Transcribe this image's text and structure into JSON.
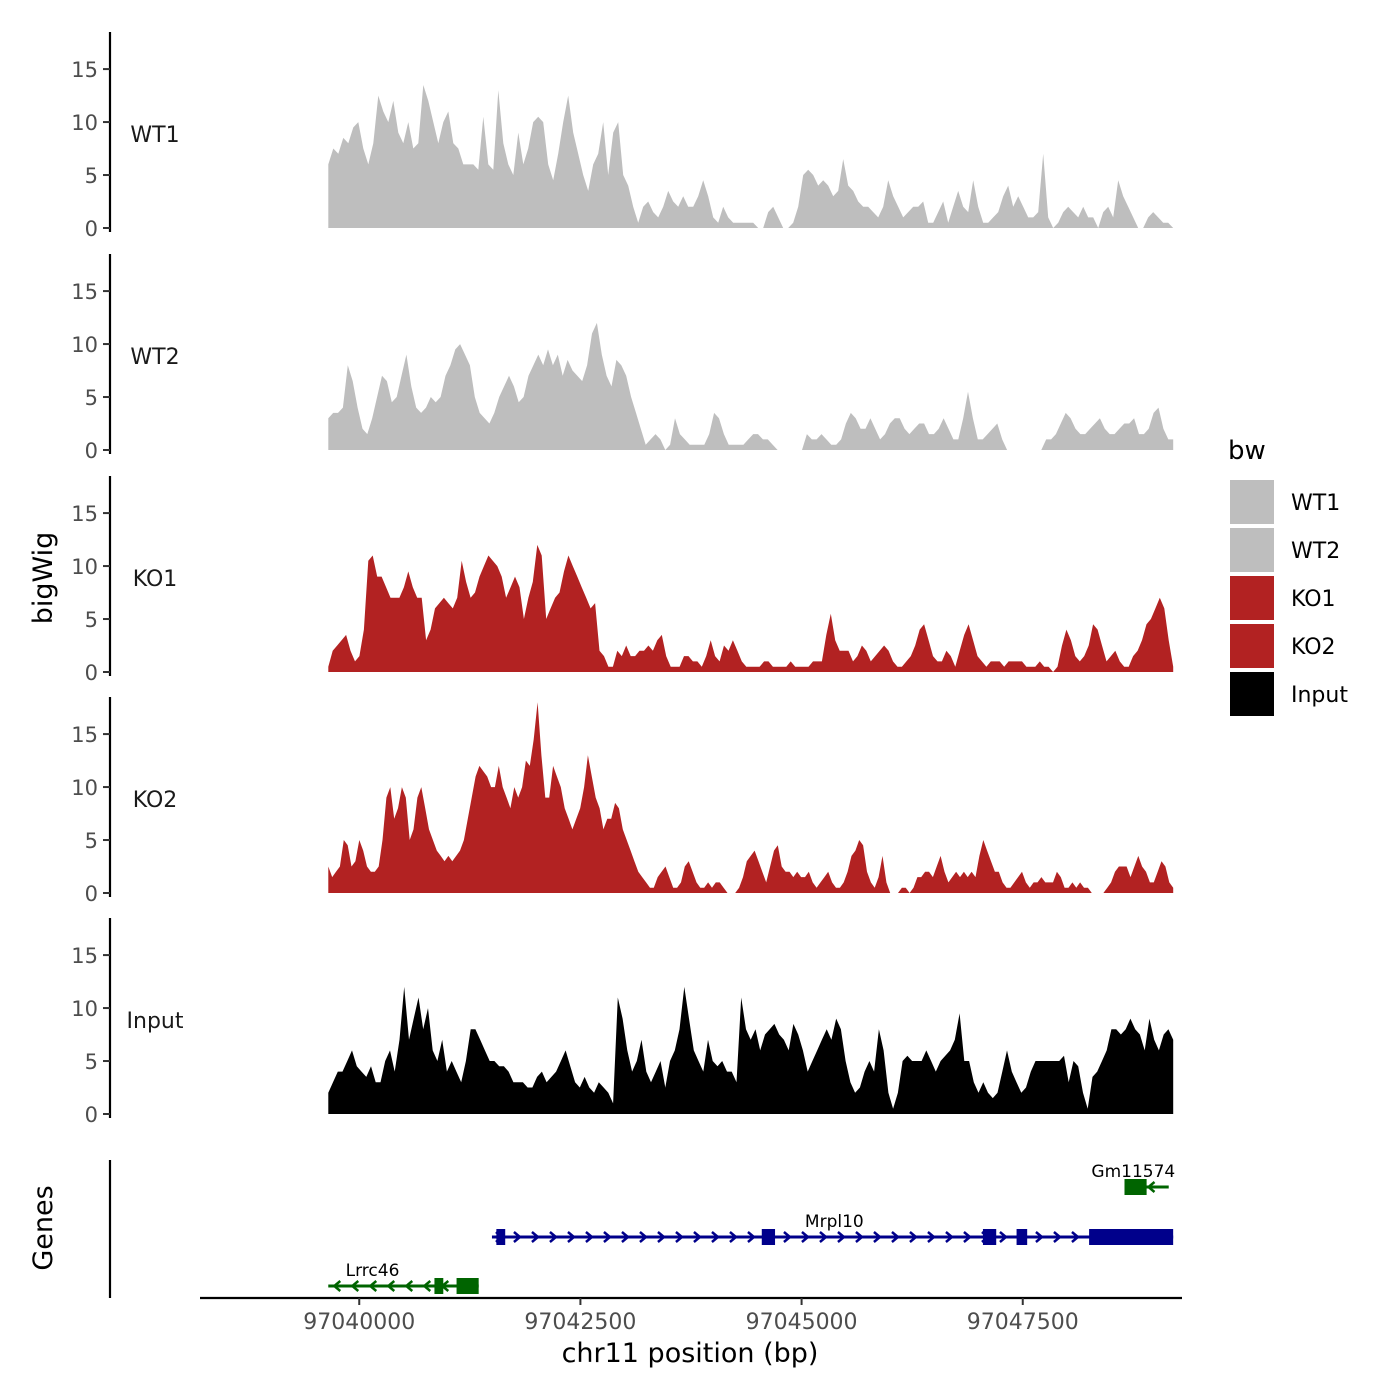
{
  "chart_data": {
    "type": "area",
    "title": "",
    "xlabel": "chr11 position (bp)",
    "ylabel": "bigWig",
    "genes_label": "Genes",
    "xlim": [
      97038200,
      97049300
    ],
    "ylim": [
      0,
      18.5
    ],
    "x_ticks": [
      97040000,
      97042500,
      97045000,
      97047500
    ],
    "y_ticks": [
      0,
      5,
      10,
      15
    ],
    "x_range": [
      97039650,
      97049200
    ],
    "legend": {
      "title": "bw",
      "position": "right",
      "entries": [
        {
          "name": "WT1",
          "color": "#bebebe"
        },
        {
          "name": "WT2",
          "color": "#bebebe"
        },
        {
          "name": "KO1",
          "color": "#b22222"
        },
        {
          "name": "KO2",
          "color": "#b22222"
        },
        {
          "name": "Input",
          "color": "#000000"
        }
      ]
    },
    "series": [
      {
        "name": "WT1",
        "color": "#bebebe",
        "values": [
          6,
          7.5,
          7,
          8.5,
          8,
          9.5,
          10,
          7.5,
          6,
          8,
          12.5,
          11,
          10,
          12,
          9,
          8,
          10,
          7.5,
          8,
          13.5,
          12,
          10,
          8,
          10,
          11,
          8,
          7.5,
          6,
          6,
          6,
          5.5,
          10.5,
          6,
          5.5,
          13,
          8,
          6,
          5,
          9,
          6,
          7.5,
          10,
          10.5,
          10,
          6,
          4.5,
          7,
          10,
          12.5,
          9,
          7,
          5,
          3.5,
          6,
          7,
          10,
          5,
          9,
          10,
          5,
          4,
          2,
          0.5,
          2,
          2.5,
          1.5,
          1,
          2,
          3.5,
          2.5,
          2,
          3,
          2,
          2,
          3,
          4.5,
          3,
          1,
          0.5,
          2,
          1,
          0.5,
          0.5,
          0.5,
          0.5,
          0.5,
          0,
          0,
          1.5,
          2,
          1,
          0,
          0,
          0.5,
          2,
          5,
          5.5,
          5,
          4,
          4.5,
          4,
          3,
          3.5,
          6.5,
          4,
          3.5,
          2.5,
          2,
          2,
          1.5,
          1,
          2,
          4.5,
          3,
          2,
          1,
          1.5,
          2,
          2,
          2.5,
          0.5,
          0.5,
          1.5,
          2.5,
          0.5,
          2,
          3.5,
          2,
          1.5,
          4.5,
          2,
          0.5,
          0.5,
          1,
          1.5,
          3,
          4,
          2,
          3,
          2,
          1,
          1,
          1.5,
          7,
          1,
          0,
          0.5,
          1.5,
          2,
          1.5,
          1,
          2,
          1,
          1,
          0,
          1.5,
          2,
          1,
          4.5,
          3,
          2,
          1,
          0,
          0,
          1,
          1.5,
          1,
          0.5,
          0.5,
          0
        ]
      },
      {
        "name": "WT2",
        "color": "#bebebe",
        "values": [
          3,
          3.5,
          3.5,
          4,
          8,
          6.5,
          4,
          2,
          1.5,
          3,
          5,
          7,
          6.5,
          4.5,
          5,
          7,
          9,
          6,
          4,
          3.5,
          4,
          5,
          4.5,
          5,
          7,
          8,
          9.5,
          10,
          9,
          8,
          5,
          3.5,
          3,
          2.5,
          3.5,
          5,
          6,
          7,
          6,
          4.5,
          5,
          7,
          8,
          9,
          8,
          9.5,
          8,
          9,
          7,
          8.5,
          7.5,
          7,
          6.5,
          8,
          11,
          12,
          9,
          7,
          6,
          8.5,
          8,
          7,
          5,
          3.5,
          2,
          0.5,
          1,
          1.5,
          1,
          0,
          0.5,
          3,
          1.5,
          1,
          0.5,
          0.5,
          0.5,
          0.5,
          1.5,
          3.5,
          3,
          1.5,
          0.5,
          0.5,
          0.5,
          0.5,
          1,
          1.5,
          1.5,
          1,
          1,
          0.5,
          0,
          0,
          0,
          0,
          0,
          0,
          1.5,
          1,
          1,
          1.5,
          1,
          0.5,
          0.5,
          1,
          2.5,
          3.5,
          3,
          2,
          2,
          3,
          2,
          1,
          1.5,
          2.5,
          3,
          3,
          2,
          1.5,
          2,
          2.5,
          2.5,
          1.5,
          1.5,
          2,
          3,
          2,
          1,
          1,
          3,
          5.5,
          3,
          1,
          1,
          1.5,
          2,
          2.5,
          1,
          0,
          0,
          0,
          0,
          0,
          0,
          0,
          0,
          1,
          1,
          1.5,
          2.5,
          3.5,
          3,
          2,
          1.5,
          1.5,
          2,
          2.5,
          3,
          2,
          1.5,
          1.5,
          2,
          2.5,
          2.5,
          3,
          1.5,
          1.5,
          2,
          3.5,
          4,
          2,
          1,
          1
        ]
      },
      {
        "name": "KO1",
        "color": "#b22222",
        "values": [
          0.5,
          2,
          2.5,
          3,
          3.5,
          2,
          1,
          1.5,
          4,
          10.5,
          11,
          9,
          9,
          8,
          7,
          7,
          7,
          8,
          9.5,
          8,
          7,
          7,
          3,
          4,
          6,
          6.5,
          7,
          6.5,
          6,
          7,
          10.5,
          8.5,
          7,
          7.5,
          9,
          10,
          11,
          10.5,
          10,
          9,
          7,
          8,
          9,
          8,
          5,
          7,
          8.5,
          12,
          11,
          5,
          6,
          7,
          7.5,
          9.5,
          11,
          10,
          9,
          8,
          7,
          6,
          6.5,
          2,
          1.5,
          0.5,
          0.5,
          2,
          1.5,
          2.5,
          1.5,
          1.5,
          2,
          2,
          2.5,
          2,
          3,
          3.5,
          1.5,
          0.5,
          0.5,
          0.5,
          1.5,
          1.5,
          1,
          1,
          0.5,
          1.5,
          3,
          1.5,
          1,
          2.5,
          2,
          3,
          2,
          1,
          0.5,
          0.5,
          0.5,
          0.5,
          1,
          1,
          0.5,
          0.5,
          0.5,
          0.5,
          1,
          0.5,
          0.5,
          0.5,
          0.5,
          1,
          1,
          1,
          3.5,
          5.5,
          3,
          2,
          2,
          2,
          1,
          1.5,
          2.5,
          2,
          1,
          1.5,
          2,
          2.5,
          2,
          1,
          0.5,
          0.5,
          1,
          1.5,
          2.5,
          4,
          4.5,
          3,
          1.5,
          1,
          1,
          2,
          1.5,
          0.5,
          2,
          3.5,
          4.5,
          3,
          1.5,
          1,
          0.5,
          1,
          1,
          1,
          0.5,
          1,
          1,
          1,
          1,
          0.5,
          0.5,
          0.5,
          1,
          0.5,
          0.5,
          0,
          0.5,
          2.5,
          4,
          3,
          1.5,
          1,
          1.5,
          2.5,
          4.5,
          4,
          2.5,
          1,
          1.5,
          2,
          1,
          0.5,
          0.5,
          1.5,
          2,
          3,
          4.5,
          5,
          6,
          7,
          6,
          3,
          0.5
        ]
      },
      {
        "name": "KO2",
        "color": "#b22222",
        "values": [
          2.5,
          1.5,
          2,
          2.5,
          5,
          4.5,
          2.5,
          3,
          5,
          4,
          2.5,
          2,
          2,
          2.5,
          5,
          9,
          10,
          7,
          8,
          10,
          9,
          5,
          6,
          9,
          10,
          8,
          6,
          5,
          4,
          3.5,
          3,
          3.5,
          3,
          3.5,
          4,
          5,
          7,
          9,
          11,
          12,
          11.5,
          11,
          10,
          10,
          12,
          10,
          9,
          8,
          10,
          9,
          10,
          12.5,
          12,
          14.5,
          18,
          13,
          9,
          9,
          12,
          11,
          10,
          8,
          7,
          6,
          7,
          8,
          10,
          13,
          11,
          9,
          8,
          6,
          7,
          7,
          8.5,
          8,
          6,
          5,
          4,
          3,
          2,
          1.5,
          1,
          0.5,
          0.5,
          1.5,
          2,
          2.5,
          1.5,
          0.5,
          0.5,
          1,
          2.5,
          3,
          2,
          1,
          0.5,
          0.5,
          1,
          0.5,
          1,
          1,
          0.5,
          0,
          0,
          0,
          0.5,
          1.5,
          3,
          3.5,
          4,
          3,
          2,
          1,
          2.5,
          4,
          4.5,
          2.5,
          2,
          2,
          1.5,
          2,
          1.5,
          1.5,
          2,
          1,
          0.5,
          1,
          1.5,
          2,
          1,
          0.5,
          0.5,
          1,
          2,
          3.5,
          4,
          5,
          4.5,
          2,
          1,
          0.5,
          1.5,
          3.5,
          1,
          0,
          0,
          0,
          0.5,
          0.5,
          0,
          0.5,
          1.5,
          1.5,
          2,
          2,
          1.5,
          2.5,
          3.5,
          2,
          1,
          1.5,
          2,
          1.5,
          2,
          1.5,
          2,
          1.5,
          3.5,
          5,
          4,
          3,
          2,
          2,
          1,
          0.5,
          0.5,
          1,
          1.5,
          2,
          1,
          0.5,
          1,
          1,
          1.5,
          1,
          1,
          1,
          2,
          1.5,
          0.5,
          0.5,
          1,
          0.5,
          1,
          0.5,
          0.5,
          0,
          0,
          0,
          0,
          0.5,
          1,
          2,
          2.5,
          2.5,
          2.5,
          1.5,
          2.5,
          3.5,
          2.5,
          2,
          1,
          1,
          2,
          3,
          2.5,
          1,
          0.5
        ]
      },
      {
        "name": "Input",
        "color": "#000000",
        "values": [
          2,
          3,
          4,
          4,
          5,
          6,
          4.5,
          4,
          3.5,
          4.5,
          3,
          3,
          5,
          6,
          4,
          7,
          12,
          7,
          9,
          11,
          8,
          10,
          6,
          5,
          7,
          4,
          5,
          4,
          3,
          5,
          8,
          8,
          7,
          6,
          5,
          5,
          4.5,
          4.5,
          4,
          3,
          3,
          3,
          2.5,
          2.5,
          3.5,
          4,
          3,
          3.5,
          4,
          5,
          6,
          4.5,
          3,
          2.5,
          3.5,
          2.5,
          2,
          3,
          2.5,
          2,
          1,
          11,
          9,
          6,
          4,
          5,
          7,
          4,
          3,
          4,
          5,
          2.5,
          5,
          6,
          8,
          12,
          9,
          6,
          5,
          4,
          7,
          5,
          4.5,
          5,
          4,
          4,
          3,
          11,
          8,
          7,
          8,
          6,
          7.5,
          8,
          8.5,
          7.5,
          7,
          6,
          8.5,
          7.5,
          6,
          4,
          5,
          6,
          7,
          8,
          7,
          9,
          8,
          5,
          3,
          2,
          2.5,
          4,
          5,
          4,
          8,
          6,
          2,
          0.5,
          2,
          5,
          5.5,
          5,
          5,
          5,
          6,
          5,
          4,
          5,
          5.5,
          6,
          7,
          9.5,
          5,
          5,
          3,
          2,
          3,
          2,
          1.5,
          2,
          4,
          6,
          4,
          3,
          2,
          2.5,
          4,
          5,
          5,
          5,
          5,
          5,
          5,
          5.5,
          3,
          5,
          4.5,
          2,
          0.5,
          3.5,
          4,
          5,
          6,
          8,
          8,
          7.5,
          8,
          9,
          8,
          7.5,
          6,
          9,
          7,
          6,
          7.5,
          8,
          7
        ]
      }
    ],
    "genes": [
      {
        "name": "Lrrc46",
        "strand": "-",
        "color": "#006400",
        "row": 1,
        "start": 97039650,
        "end": 97041350,
        "exons": [
          [
            97040850,
            97040950
          ],
          [
            97041100,
            97041350
          ]
        ],
        "label_x": 97040150
      },
      {
        "name": "Mrpl10",
        "strand": "+",
        "color": "#00008b",
        "row": 2,
        "start": 97041500,
        "end": 97049200,
        "exons": [
          [
            97041550,
            97041650
          ],
          [
            97044550,
            97044700
          ],
          [
            97047050,
            97047200
          ],
          [
            97047430,
            97047550
          ],
          [
            97048250,
            97049200
          ]
        ],
        "label_x": 97045370
      },
      {
        "name": "Gm11574",
        "strand": "-",
        "color": "#006400",
        "row": 3,
        "start": 97048650,
        "end": 97049150,
        "exons": [
          [
            97048650,
            97048900
          ]
        ],
        "label_x": 97048750
      }
    ]
  }
}
